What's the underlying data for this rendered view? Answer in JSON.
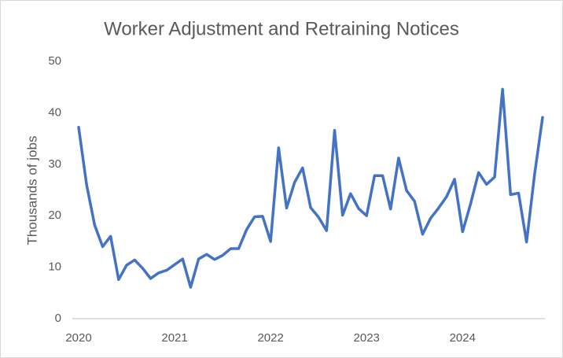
{
  "chart_data": {
    "type": "line",
    "title": "Worker Adjustment and Retraining Notices",
    "y_label": "Thousands of jobs",
    "categories": [
      "2020",
      null,
      null,
      null,
      null,
      null,
      null,
      null,
      null,
      null,
      null,
      null,
      "2021",
      null,
      null,
      null,
      null,
      null,
      null,
      null,
      null,
      null,
      null,
      null,
      "2022",
      null,
      null,
      null,
      null,
      null,
      null,
      null,
      null,
      null,
      null,
      null,
      "2023",
      null,
      null,
      null,
      null,
      null,
      null,
      null,
      null,
      null,
      null,
      null,
      "2024",
      null,
      null,
      null,
      null,
      null,
      null,
      null,
      null,
      null,
      null
    ],
    "values": [
      37.2,
      26,
      18.2,
      14,
      16,
      7.6,
      10.4,
      11.4,
      9.8,
      7.8,
      8.9,
      9.4,
      10.5,
      11.6,
      6.1,
      11.6,
      12.5,
      11.5,
      12.3,
      13.6,
      13.6,
      17.3,
      19.8,
      19.9,
      15,
      33.2,
      21.5,
      26.5,
      29.3,
      21.6,
      19.7,
      17.1,
      36.6,
      20.1,
      24.3,
      21.4,
      20,
      27.8,
      27.8,
      21.3,
      31.2,
      24.9,
      22.8,
      16.4,
      19.5,
      21.5,
      23.7,
      27.1,
      16.9,
      22.3,
      28.4,
      26.1,
      27.5,
      44.6,
      24.1,
      24.4,
      14.9,
      28,
      39.1
    ],
    "color": "#4472c4",
    "ylim": [
      0,
      50
    ],
    "yticks": [
      0,
      10,
      20,
      30,
      40,
      50
    ],
    "grid": false
  }
}
